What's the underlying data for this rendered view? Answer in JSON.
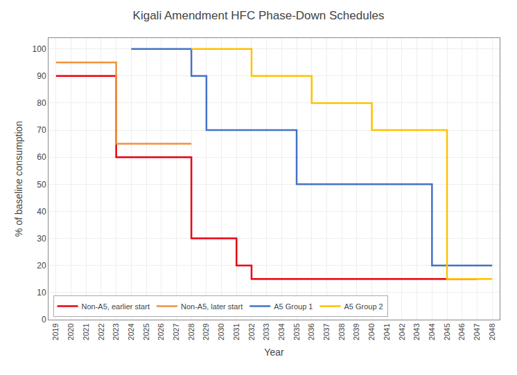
{
  "chart_data": {
    "type": "line",
    "title": "Kigali Amendment HFC Phase-Down Schedules",
    "x_label": "Year",
    "y_label": "% of baseline consumption",
    "xlim": [
      2018.5,
      2048.5
    ],
    "xticks": [
      2019,
      2020,
      2021,
      2022,
      2023,
      2024,
      2025,
      2026,
      2027,
      2028,
      2029,
      2030,
      2031,
      2032,
      2033,
      2034,
      2035,
      2036,
      2037,
      2038,
      2039,
      2040,
      2041,
      2042,
      2043,
      2044,
      2045,
      2046,
      2047,
      2048
    ],
    "ylim": [
      0,
      104
    ],
    "yticks": [
      0,
      10,
      20,
      30,
      40,
      50,
      60,
      70,
      80,
      90,
      100
    ],
    "grid": true,
    "legend": "lower left",
    "series": [
      {
        "name": "Non-A5, earlier start",
        "color": "#e8000e",
        "x": [
          2019,
          2023,
          2023,
          2028,
          2028,
          2031,
          2031,
          2032,
          2032,
          2047
        ],
        "values": [
          90,
          90,
          60,
          60,
          30,
          30,
          20,
          20,
          15,
          15
        ]
      },
      {
        "name": "Non-A5, later start",
        "color": "#f0923a",
        "x": [
          2019,
          2023,
          2023,
          2028
        ],
        "values": [
          95,
          95,
          65,
          65
        ]
      },
      {
        "name": "A5 Group 1",
        "color": "#4472c4",
        "x": [
          2024,
          2028,
          2028,
          2029,
          2029,
          2035,
          2035,
          2044,
          2044,
          2048
        ],
        "values": [
          100,
          100,
          90,
          90,
          70,
          70,
          50,
          50,
          20,
          20
        ]
      },
      {
        "name": "A5 Group 2",
        "color": "#ffc000",
        "x": [
          2028,
          2032,
          2032,
          2036,
          2036,
          2040,
          2040,
          2045,
          2045,
          2048
        ],
        "values": [
          100,
          100,
          90,
          90,
          80,
          80,
          70,
          70,
          15,
          15
        ]
      }
    ]
  }
}
